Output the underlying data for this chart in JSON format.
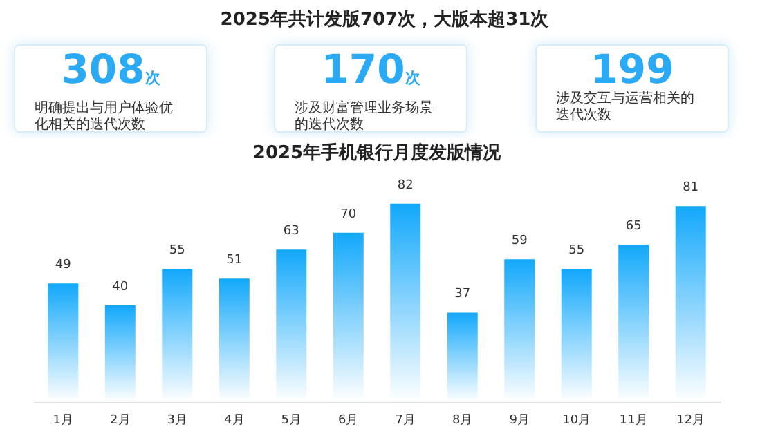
{
  "chart_data": [
    {
      "type": "other",
      "title": "2025年共计发版707次，大版本超31次",
      "annotations": [
        "308次",
        "明确提出与用户体验优化相关的迭代次数",
        "170次",
        "涉及财富管理业务场景的迭代次数",
        "199",
        "涉及交互与运营相关的迭代次数"
      ]
    },
    {
      "type": "bar",
      "title": "2025年手机银行月度发版情况",
      "categories": [
        "1月",
        "2月",
        "3月",
        "4月",
        "5月",
        "6月",
        "7月",
        "8月",
        "9月",
        "10月",
        "11月",
        "12月"
      ],
      "series": [
        {
          "color": "#12a8fb",
          "values": [
            49,
            40,
            55,
            51,
            63,
            70,
            82,
            37,
            59,
            55,
            65,
            81
          ]
        }
      ],
      "data_labels": true
    }
  ]
}
